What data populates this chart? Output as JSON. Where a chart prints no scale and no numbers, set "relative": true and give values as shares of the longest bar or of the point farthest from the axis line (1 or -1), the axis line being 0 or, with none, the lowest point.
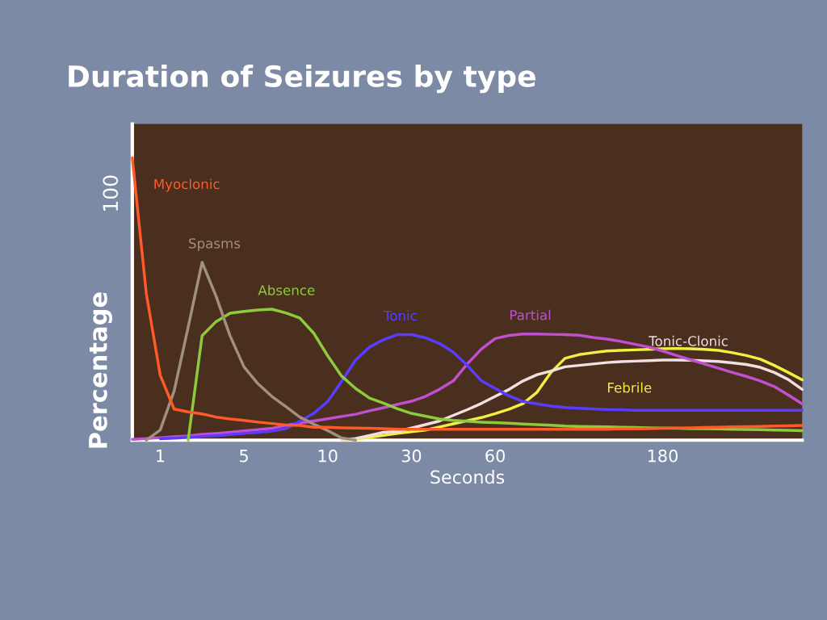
{
  "chart_data": {
    "type": "line",
    "title": "Duration of Seizures by type",
    "xlabel": "Seconds",
    "ylabel": "Percentage",
    "relative": true,
    "annotations": [
      "100"
    ],
    "categories": [
      null,
      null,
      "1",
      null,
      null,
      null,
      null,
      null,
      "5",
      null,
      null,
      null,
      null,
      null,
      "10",
      null,
      null,
      null,
      null,
      null,
      "30",
      null,
      null,
      null,
      null,
      null,
      "60",
      null,
      null,
      null,
      null,
      null,
      null,
      null,
      null,
      null,
      null,
      null,
      "180",
      null,
      null,
      null,
      null,
      null,
      null,
      null,
      null,
      null,
      null
    ],
    "grid": false,
    "legend": false,
    "marker": "none",
    "line_style": "solid",
    "series": [
      {
        "name": "Myoclonic",
        "color": "#ff5a2a",
        "values": [
          1.0,
          0.52,
          0.23,
          0.11,
          0.1,
          0.093,
          0.082,
          0.075,
          0.07,
          0.064,
          0.059,
          0.054,
          0.052,
          0.046,
          0.046,
          0.044,
          0.043,
          0.042,
          0.041,
          0.039,
          0.039,
          0.039,
          0.039,
          0.039,
          0.039,
          0.039,
          0.039,
          0.039,
          0.039,
          0.039,
          0.039,
          0.039,
          0.039,
          0.039,
          0.039,
          0.04,
          0.04,
          0.041,
          0.042,
          0.043,
          0.044,
          0.045,
          0.046,
          0.047,
          0.048,
          0.049,
          0.05,
          0.051,
          0.052
        ]
      },
      {
        "name": "Spasms",
        "color": "#a09080",
        "values": [
          null,
          0,
          0.036,
          0.175,
          0.4,
          0.63,
          0.51,
          0.37,
          0.26,
          0.2,
          0.155,
          0.119,
          0.082,
          0.057,
          0.034,
          0.008,
          0,
          null,
          null,
          null,
          null,
          null,
          null,
          null,
          null,
          null,
          null,
          null,
          null,
          null,
          null,
          null,
          null,
          null,
          null,
          null,
          null,
          null,
          null,
          null,
          null,
          null,
          null,
          null,
          null,
          null,
          null,
          null,
          null
        ]
      },
      {
        "name": "Absence",
        "color": "#8ccc3c",
        "values": [
          null,
          null,
          null,
          null,
          0,
          0.37,
          0.42,
          0.45,
          0.456,
          0.461,
          0.464,
          0.451,
          0.433,
          0.379,
          0.299,
          0.227,
          0.183,
          0.149,
          0.131,
          0.111,
          0.095,
          0.085,
          0.075,
          0.07,
          0.067,
          0.064,
          0.062,
          0.06,
          0.057,
          0.055,
          0.053,
          0.05,
          0.049,
          0.048,
          0.047,
          0.046,
          0.045,
          0.044,
          0.043,
          0.042,
          0.041,
          0.041,
          0.04,
          0.039,
          0.038,
          0.037,
          0.036,
          0.035,
          0.034
        ]
      },
      {
        "name": "Tonic",
        "color": "#5a3cff",
        "values": [
          null,
          null,
          0.005,
          0.007,
          0.01,
          0.013,
          0.016,
          0.02,
          0.024,
          0.028,
          0.032,
          0.041,
          0.067,
          0.095,
          0.137,
          0.209,
          0.284,
          0.33,
          0.356,
          0.374,
          0.374,
          0.363,
          0.343,
          0.312,
          0.265,
          0.211,
          0.183,
          0.157,
          0.137,
          0.129,
          0.121,
          0.116,
          0.113,
          0.111,
          0.109,
          0.108,
          0.106,
          0.106,
          0.106,
          0.106,
          0.106,
          0.106,
          0.106,
          0.106,
          0.106,
          0.106,
          0.106,
          0.106,
          0.106
        ]
      },
      {
        "name": "Partial",
        "color": "#c050d0",
        "values": [
          0.003,
          0.006,
          0.009,
          0.012,
          0.015,
          0.021,
          0.024,
          0.028,
          0.033,
          0.037,
          0.042,
          0.053,
          0.06,
          0.068,
          0.076,
          0.084,
          0.092,
          0.104,
          0.115,
          0.127,
          0.138,
          0.155,
          0.18,
          0.21,
          0.27,
          0.322,
          0.36,
          0.371,
          0.376,
          0.376,
          0.375,
          0.374,
          0.372,
          0.364,
          0.358,
          0.35,
          0.34,
          0.33,
          0.316,
          0.3,
          0.285,
          0.27,
          0.255,
          0.24,
          0.226,
          0.21,
          0.19,
          0.16,
          0.129
        ]
      },
      {
        "name": "Tonic-Clonic",
        "color": "#f0e0e0",
        "values": [
          null,
          null,
          null,
          null,
          null,
          null,
          null,
          null,
          null,
          null,
          null,
          null,
          null,
          null,
          null,
          0,
          0.006,
          0.017,
          0.028,
          0.031,
          0.043,
          0.055,
          0.068,
          0.088,
          0.108,
          0.13,
          0.155,
          0.18,
          0.21,
          0.232,
          0.245,
          0.26,
          0.265,
          0.27,
          0.275,
          0.278,
          0.28,
          0.282,
          0.284,
          0.284,
          0.283,
          0.281,
          0.279,
          0.274,
          0.268,
          0.258,
          0.24,
          0.215,
          0.18
        ]
      },
      {
        "name": "Febrile",
        "color": "#f0f040",
        "values": [
          null,
          null,
          null,
          null,
          null,
          null,
          null,
          null,
          null,
          null,
          null,
          null,
          null,
          null,
          null,
          0,
          0.004,
          0.01,
          0.017,
          0.024,
          0.03,
          0.036,
          0.047,
          0.058,
          0.069,
          0.08,
          0.094,
          0.11,
          0.13,
          0.17,
          0.24,
          0.29,
          0.303,
          0.31,
          0.316,
          0.318,
          0.32,
          0.322,
          0.324,
          0.325,
          0.324,
          0.322,
          0.318,
          0.31,
          0.3,
          0.287,
          0.265,
          0.24,
          0.214
        ]
      }
    ]
  }
}
